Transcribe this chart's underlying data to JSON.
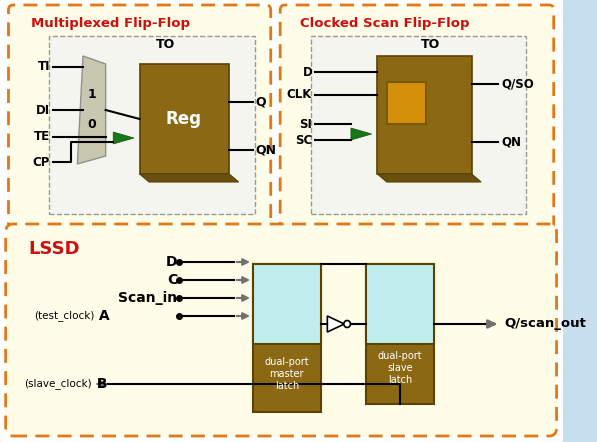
{
  "fig_bg": "#c8dff0",
  "white_bg": "#ffffff",
  "top_bg": "#fffce8",
  "border_orange": "#e07818",
  "reg_color": "#8B6914",
  "reg_dark": "#5a4200",
  "light_blue": "#c0eeee",
  "green_arrow": "#187818",
  "dark_green": "#105010",
  "gray": "#707070",
  "dark_gray": "#404040",
  "title_red": "#cc1010",
  "title_orange": "#e07010",
  "inner_bg": "#f5f5f0",
  "mux_fill": "#c8c8b0",
  "mux_edge": "#909090",
  "black": "#000000",
  "white": "#ffffff",
  "lssd_title": "LSSD",
  "mff_title": "Multiplexed Flip-Flop",
  "csff_title": "Clocked Scan Flip-Flop"
}
